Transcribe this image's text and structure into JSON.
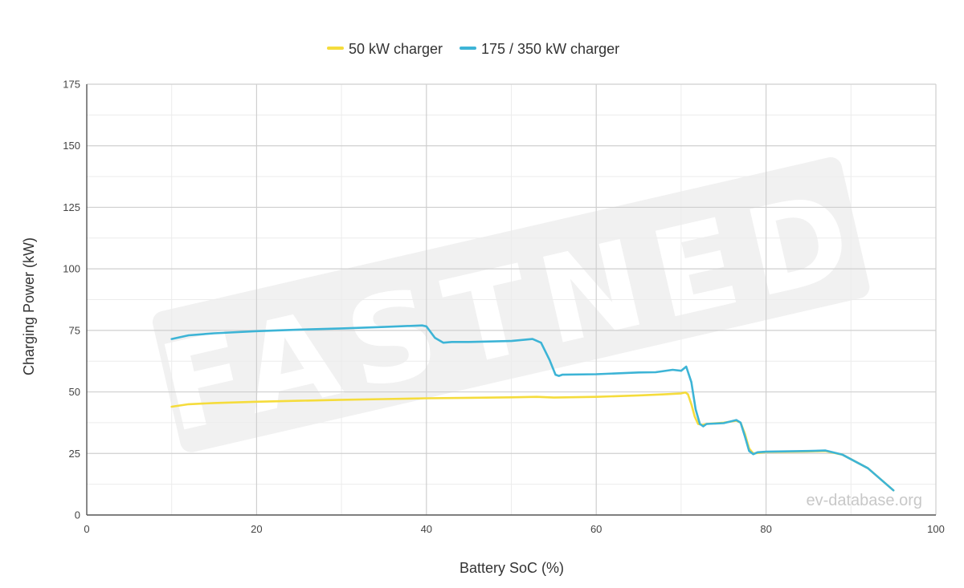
{
  "chart_data": {
    "type": "line",
    "xlabel": "Battery SoC (%)",
    "ylabel": "Charging Power (kW)",
    "xlim": [
      0,
      100
    ],
    "ylim": [
      0,
      175
    ],
    "x_ticks": [
      0,
      20,
      40,
      60,
      80,
      100
    ],
    "y_ticks": [
      0,
      25,
      50,
      75,
      100,
      125,
      150,
      175
    ],
    "grid": true,
    "legend_position": "top-center",
    "series": [
      {
        "name": "50 kW charger",
        "color": "#f5dc3c",
        "points": [
          [
            10,
            44
          ],
          [
            12,
            45
          ],
          [
            15,
            45.5
          ],
          [
            20,
            46
          ],
          [
            25,
            46.4
          ],
          [
            30,
            46.8
          ],
          [
            35,
            47.1
          ],
          [
            40,
            47.4
          ],
          [
            45,
            47.6
          ],
          [
            50,
            47.8
          ],
          [
            53,
            48
          ],
          [
            55,
            47.7
          ],
          [
            60,
            48
          ],
          [
            65,
            48.6
          ],
          [
            68,
            49
          ],
          [
            70,
            49.4
          ],
          [
            70.5,
            49.8
          ],
          [
            70.8,
            49
          ],
          [
            71.2,
            45
          ],
          [
            71.6,
            40
          ],
          [
            72,
            37
          ],
          [
            72.5,
            36.6
          ],
          [
            73,
            37
          ],
          [
            75,
            37.5
          ],
          [
            76.5,
            38.3
          ],
          [
            77,
            37.5
          ],
          [
            77.5,
            33
          ],
          [
            78,
            27
          ],
          [
            78.5,
            25
          ],
          [
            80,
            25.6
          ],
          [
            85,
            25.8
          ],
          [
            87,
            26
          ],
          [
            89,
            24.5
          ],
          [
            92,
            19
          ],
          [
            95,
            10
          ]
        ]
      },
      {
        "name": "175 / 350 kW charger",
        "color": "#3db4d6",
        "points": [
          [
            10,
            71.5
          ],
          [
            12,
            73
          ],
          [
            15,
            73.8
          ],
          [
            20,
            74.7
          ],
          [
            25,
            75.3
          ],
          [
            30,
            75.8
          ],
          [
            35,
            76.4
          ],
          [
            39.5,
            77
          ],
          [
            40,
            76.6
          ],
          [
            41,
            72
          ],
          [
            42,
            70
          ],
          [
            43,
            70.3
          ],
          [
            45,
            70.3
          ],
          [
            50,
            70.7
          ],
          [
            52.5,
            71.5
          ],
          [
            53.5,
            70
          ],
          [
            54.5,
            63
          ],
          [
            55.2,
            57
          ],
          [
            55.6,
            56.5
          ],
          [
            56,
            57
          ],
          [
            60,
            57.2
          ],
          [
            65,
            57.9
          ],
          [
            67,
            58
          ],
          [
            69,
            59
          ],
          [
            70,
            58.6
          ],
          [
            70.6,
            60.3
          ],
          [
            71.2,
            54
          ],
          [
            71.7,
            43
          ],
          [
            72.2,
            37
          ],
          [
            72.6,
            36
          ],
          [
            73,
            37
          ],
          [
            75,
            37.3
          ],
          [
            76.5,
            38.6
          ],
          [
            77,
            37.5
          ],
          [
            77.5,
            32
          ],
          [
            78,
            26
          ],
          [
            78.5,
            24.7
          ],
          [
            79,
            25.5
          ],
          [
            80,
            25.7
          ],
          [
            85,
            26
          ],
          [
            87,
            26.2
          ],
          [
            89,
            24.5
          ],
          [
            92,
            19
          ],
          [
            95,
            10
          ]
        ]
      }
    ],
    "annotations": [
      "FASTNED",
      "ev-database.org"
    ]
  }
}
